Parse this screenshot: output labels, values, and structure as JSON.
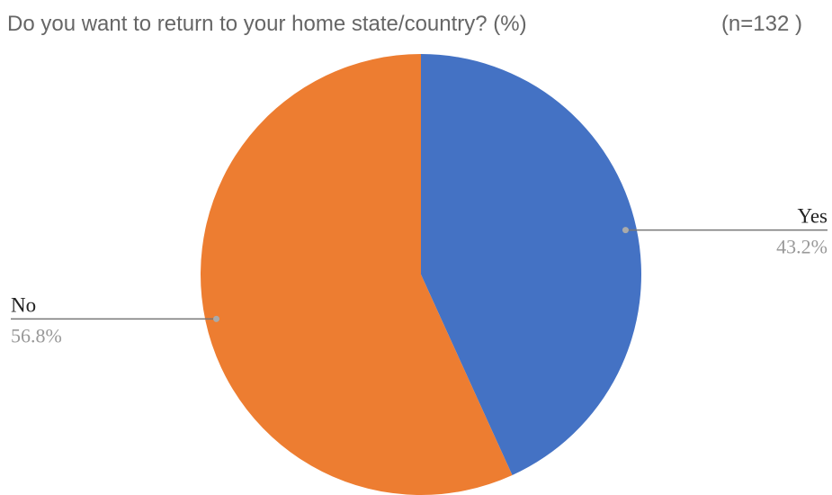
{
  "chart_data": {
    "type": "pie",
    "title": "Do you want to return to your home state/country? (%)",
    "subtitle": "(n=132 )",
    "categories": [
      "Yes",
      "No"
    ],
    "values": [
      43.2,
      56.8
    ],
    "value_labels": [
      "43.2%",
      "56.8%"
    ],
    "colors": [
      "#4472c4",
      "#ed7d31"
    ]
  }
}
